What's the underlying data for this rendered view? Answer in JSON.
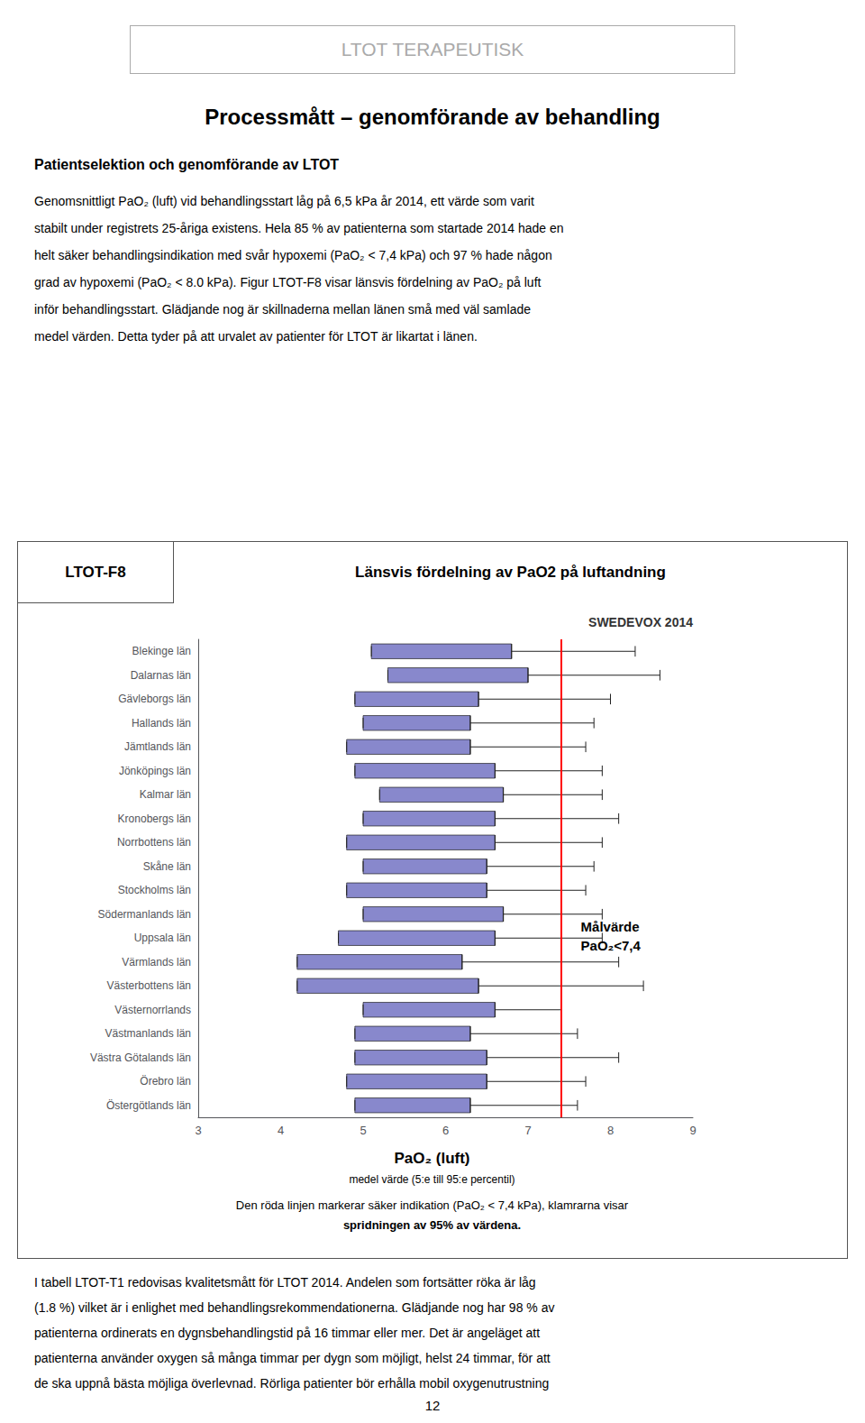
{
  "page": {
    "header": "LTOT TERAPEUTISK",
    "title": "Processmått – genomförande av behandling",
    "subtitle": "Patientselektion och genomförande av LTOT",
    "body_lines": [
      "Genomsnittligt PaO₂ (luft) vid behandlingsstart låg på 6,5 kPa år 2014, ett värde som varit",
      "stabilt under registrets 25-åriga existens. Hela 85 % av patienterna som startade 2014 hade en",
      "helt säker behandlingsindikation med svår hypoxemi (PaO₂ < 7,4 kPa) och 97 % hade någon",
      "grad av hypoxemi (PaO₂ < 8.0 kPa). Figur LTOT-F8 visar länsvis fördelning av PaO₂ på luft",
      "inför behandlingsstart. Glädjande nog är skillnaderna mellan länen små med väl samlade",
      "medel värden. Detta tyder på att urvalet av patienter för LTOT är likartat i länen."
    ],
    "bottom_text_lines": [
      "I tabell LTOT-T1 redovisas kvalitetsmått för LTOT 2014. Andelen som fortsätter röka är låg",
      "(1.8 %) vilket är i enlighet med behandlingsrekommendationerna. Glädjande nog har 98 % av",
      "patienterna ordinerats en dygnsbehandlingstid på 16 timmar eller mer. Det är angeläget att",
      "patienterna använder oxygen så många timmar per dygn som möjligt, helst 24 timmar, för att",
      "de ska uppnå bästa möjliga överlevnad. Rörliga patienter bör erhålla mobil oxygenutrustning"
    ],
    "page_number": "12"
  },
  "chart_data": {
    "type": "bar",
    "orientation": "horizontal",
    "figure_label": "LTOT-F8",
    "title": "Länsvis fördelning av PaO2 på luftandning",
    "badge": "SWEDEVOX 2014",
    "xlabel": "PaO₂ (luft)",
    "xlabel_sub": "medel värde (5:e till 95:e percentil)",
    "caption_lines": [
      "Den röda linjen markerar säker indikation (PaO₂ < 7,4 kPa), klamrarna visar",
      "spridningen av 95% av värdena."
    ],
    "categories": [
      "Blekinge län",
      "Dalarnas län",
      "Gävleborgs län",
      "Hallands län",
      "Jämtlands län",
      "Jönköpings län",
      "Kalmar län",
      "Kronobergs län",
      "Norrbottens län",
      "Skåne län",
      "Stockholms län",
      "Södermanlands län",
      "Uppsala län",
      "Värmlands län",
      "Västerbottens län",
      "Västernorrlands",
      "Västmanlands län",
      "Västra Götalands län",
      "Örebro län",
      "Östergötlands län"
    ],
    "values": [
      6.8,
      7.0,
      6.4,
      6.3,
      6.3,
      6.6,
      6.7,
      6.6,
      6.6,
      6.5,
      6.5,
      6.7,
      6.6,
      6.2,
      6.4,
      6.6,
      6.3,
      6.5,
      6.5,
      6.3
    ],
    "q5": [
      5.1,
      5.3,
      4.9,
      5.0,
      4.8,
      4.9,
      5.2,
      5.0,
      4.8,
      5.0,
      4.8,
      5.0,
      4.7,
      4.2,
      4.2,
      5.0,
      4.9,
      4.9,
      4.8,
      4.9
    ],
    "q95": [
      8.3,
      8.6,
      8.0,
      7.8,
      7.7,
      7.9,
      7.9,
      8.1,
      7.9,
      7.8,
      7.7,
      7.9,
      7.9,
      8.1,
      8.4,
      7.4,
      7.6,
      8.1,
      7.7,
      7.6
    ],
    "color": "#8888CC",
    "reference_line": {
      "value": 7.4,
      "color": "red"
    },
    "annotations": [
      {
        "text": [
          "Målvärde",
          "PaO₂<7,4"
        ]
      }
    ],
    "xlim": [
      3,
      9
    ],
    "xticks": [
      3,
      4,
      5,
      6,
      7,
      8,
      9
    ],
    "grid": false
  }
}
